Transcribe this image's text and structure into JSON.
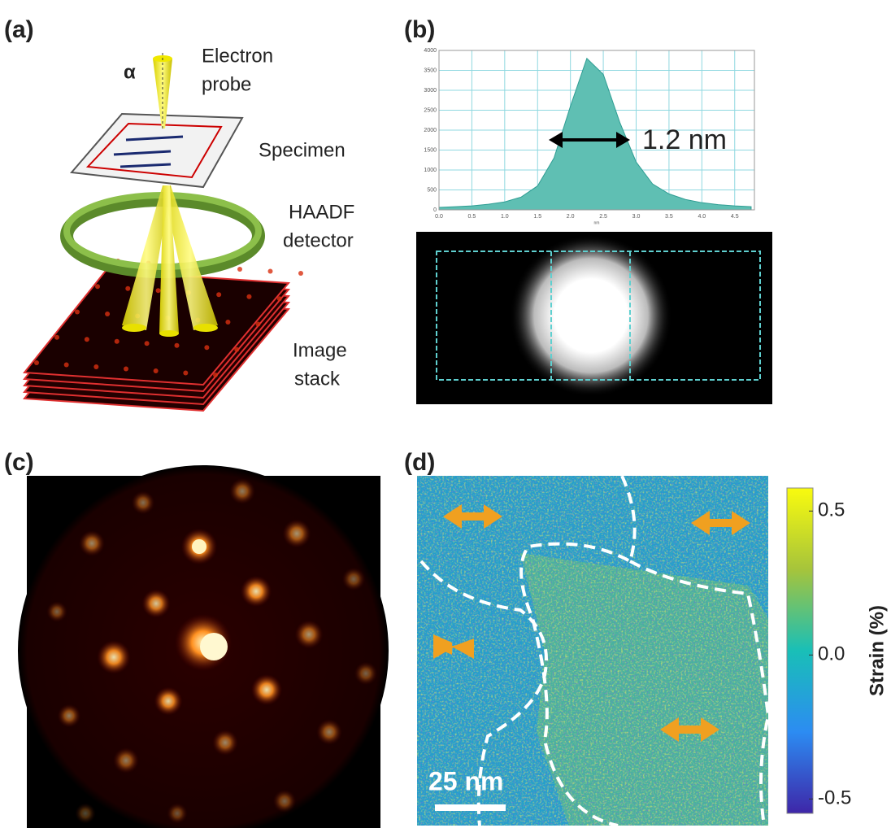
{
  "panels": {
    "a": {
      "label": "(a)",
      "alpha": "α",
      "probe": [
        "Electron",
        "probe"
      ],
      "specimen": "Specimen",
      "detector": [
        "HAADF",
        "detector"
      ],
      "stack": [
        "Image",
        "stack"
      ]
    },
    "b": {
      "label": "(b)"
    },
    "c": {
      "label": "(c)"
    },
    "d": {
      "label": "(d)",
      "scale_bar": "25 nm"
    }
  },
  "chart_data": [
    {
      "type": "area",
      "x_label": "nm",
      "annotation": "1.2 nm",
      "color": "#5fbfb3",
      "grid": true,
      "x": [
        0,
        0.25,
        0.5,
        0.75,
        1.0,
        1.25,
        1.5,
        1.75,
        2.0,
        2.25,
        2.5,
        2.75,
        3.0,
        3.25,
        3.5,
        3.75,
        4.0,
        4.25,
        4.5,
        4.75
      ],
      "values": [
        60,
        80,
        100,
        140,
        200,
        320,
        600,
        1300,
        2600,
        3800,
        3400,
        2200,
        1200,
        650,
        400,
        260,
        180,
        130,
        100,
        80
      ],
      "xlim": [
        0,
        4.8
      ],
      "ylim": [
        0,
        4000
      ],
      "xticks": [
        {
          "value": 0,
          "label": "0.0"
        },
        0.5,
        {
          "value": 1,
          "label": "1.0"
        },
        1.5,
        {
          "value": 2,
          "label": "2.0"
        },
        2.5,
        {
          "value": 3,
          "label": "3.0"
        },
        3.5,
        {
          "value": 4,
          "label": "4.0"
        },
        4.5
      ],
      "yticks": [
        0,
        500,
        1000,
        1500,
        2000,
        2500,
        3000,
        3500,
        4000
      ]
    },
    {
      "type": "colorbar",
      "y_label": "Strain (%)",
      "ylim": [
        -0.55,
        0.58
      ],
      "colors": [
        "#3e26a8",
        "#2c8cf2",
        "#19bfb7",
        "#a6c43b",
        "#f9fb0e"
      ],
      "yticks": [
        0.5,
        {
          "value": 0,
          "label": "0.0"
        },
        -0.5
      ]
    }
  ]
}
